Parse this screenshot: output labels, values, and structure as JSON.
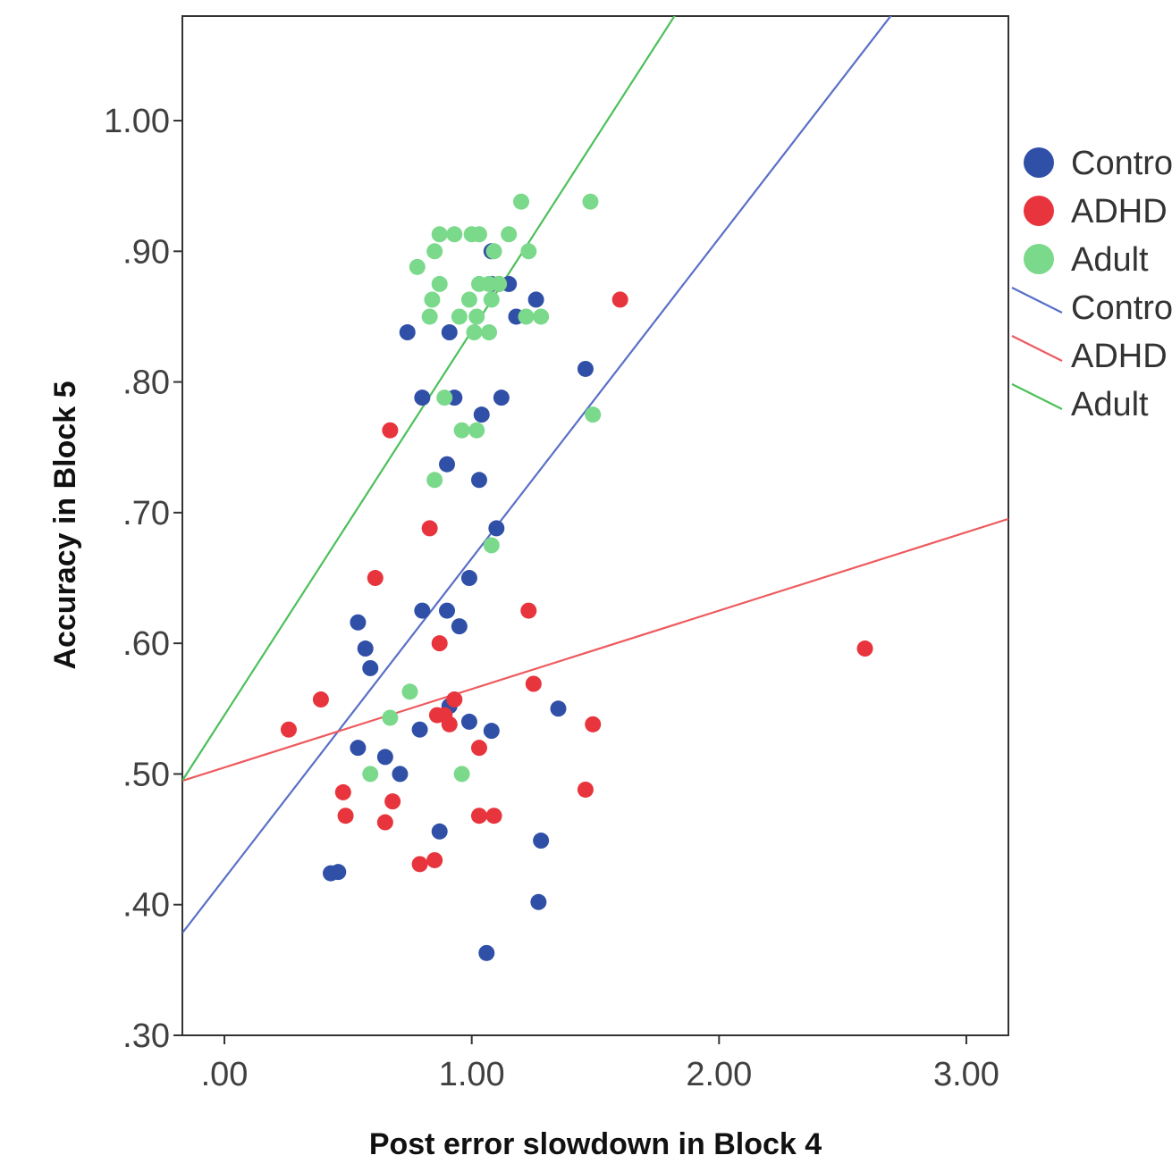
{
  "chart_data": {
    "type": "scatter",
    "xlabel": "Post error slowdown in Block 4",
    "ylabel": "Accuracy in Block 5",
    "xlim": [
      -0.17,
      3.17
    ],
    "ylim": [
      0.3,
      1.08
    ],
    "x_ticks": [
      0,
      1,
      2,
      3
    ],
    "x_tick_labels": [
      ".00",
      "1.00",
      "2.00",
      "3.00"
    ],
    "y_ticks": [
      0.3,
      0.4,
      0.5,
      0.6,
      0.7,
      0.8,
      0.9,
      1.0
    ],
    "y_tick_labels": [
      ".30",
      ".40",
      ".50",
      ".60",
      ".70",
      ".80",
      ".90",
      "1.00"
    ],
    "grid": false,
    "legend_position": "right",
    "series": [
      {
        "name": "Control",
        "color": "#3050a8",
        "points": [
          [
            0.43,
            0.424
          ],
          [
            0.46,
            0.425
          ],
          [
            0.54,
            0.52
          ],
          [
            0.54,
            0.616
          ],
          [
            0.57,
            0.596
          ],
          [
            0.59,
            0.581
          ],
          [
            0.65,
            0.513
          ],
          [
            0.71,
            0.5
          ],
          [
            0.74,
            0.838
          ],
          [
            0.79,
            0.534
          ],
          [
            0.8,
            0.788
          ],
          [
            0.8,
            0.625
          ],
          [
            0.87,
            0.456
          ],
          [
            0.9,
            0.625
          ],
          [
            0.9,
            0.737
          ],
          [
            0.91,
            0.838
          ],
          [
            0.91,
            0.552
          ],
          [
            0.93,
            0.788
          ],
          [
            0.95,
            0.613
          ],
          [
            0.99,
            0.54
          ],
          [
            0.99,
            0.65
          ],
          [
            1.03,
            0.725
          ],
          [
            1.04,
            0.775
          ],
          [
            1.06,
            0.363
          ],
          [
            1.08,
            0.533
          ],
          [
            1.08,
            0.9
          ],
          [
            1.08,
            0.875
          ],
          [
            1.1,
            0.688
          ],
          [
            1.12,
            0.788
          ],
          [
            1.15,
            0.875
          ],
          [
            1.18,
            0.85
          ],
          [
            1.26,
            0.863
          ],
          [
            1.27,
            0.402
          ],
          [
            1.28,
            0.449
          ],
          [
            1.35,
            0.55
          ],
          [
            1.46,
            0.81
          ]
        ]
      },
      {
        "name": "ADHD",
        "color": "#e8343c",
        "points": [
          [
            0.26,
            0.534
          ],
          [
            0.39,
            0.557
          ],
          [
            0.48,
            0.486
          ],
          [
            0.49,
            0.468
          ],
          [
            0.61,
            0.65
          ],
          [
            0.65,
            0.463
          ],
          [
            0.67,
            0.763
          ],
          [
            0.68,
            0.479
          ],
          [
            0.79,
            0.431
          ],
          [
            0.83,
            0.688
          ],
          [
            0.85,
            0.434
          ],
          [
            0.86,
            0.545
          ],
          [
            0.87,
            0.6
          ],
          [
            0.89,
            0.545
          ],
          [
            0.91,
            0.538
          ],
          [
            0.93,
            0.557
          ],
          [
            1.03,
            0.52
          ],
          [
            1.03,
            0.468
          ],
          [
            1.09,
            0.468
          ],
          [
            1.11,
            0.875
          ],
          [
            1.23,
            0.625
          ],
          [
            1.25,
            0.569
          ],
          [
            1.46,
            0.488
          ],
          [
            1.49,
            0.538
          ],
          [
            1.6,
            0.863
          ],
          [
            2.59,
            0.596
          ]
        ]
      },
      {
        "name": "Adult",
        "color": "#7bd98b",
        "points": [
          [
            0.59,
            0.5
          ],
          [
            0.67,
            0.543
          ],
          [
            0.75,
            0.563
          ],
          [
            0.78,
            0.888
          ],
          [
            0.83,
            0.85
          ],
          [
            0.84,
            0.863
          ],
          [
            0.85,
            0.9
          ],
          [
            0.85,
            0.725
          ],
          [
            0.87,
            0.875
          ],
          [
            0.87,
            0.913
          ],
          [
            0.89,
            0.788
          ],
          [
            0.93,
            0.913
          ],
          [
            0.95,
            0.85
          ],
          [
            0.96,
            0.763
          ],
          [
            0.96,
            0.5
          ],
          [
            0.99,
            0.863
          ],
          [
            1.0,
            0.913
          ],
          [
            1.01,
            0.838
          ],
          [
            1.02,
            0.85
          ],
          [
            1.02,
            0.763
          ],
          [
            1.03,
            0.913
          ],
          [
            1.03,
            0.875
          ],
          [
            1.07,
            0.838
          ],
          [
            1.07,
            0.875
          ],
          [
            1.08,
            0.863
          ],
          [
            1.08,
            0.675
          ],
          [
            1.09,
            0.9
          ],
          [
            1.11,
            0.875
          ],
          [
            1.15,
            0.913
          ],
          [
            1.2,
            0.938
          ],
          [
            1.22,
            0.85
          ],
          [
            1.23,
            0.9
          ],
          [
            1.28,
            0.85
          ],
          [
            1.48,
            0.938
          ],
          [
            1.49,
            0.775
          ]
        ]
      }
    ],
    "fit_lines": [
      {
        "name": "Control",
        "color": "#5a6fc6",
        "intercept": 0.42,
        "slope": 0.245
      },
      {
        "name": "ADHD",
        "color": "#ee5a5e",
        "intercept": 0.505,
        "slope": 0.06
      },
      {
        "name": "Adult",
        "color": "#4cc05a",
        "intercept": 0.545,
        "slope": 0.294
      }
    ],
    "legend": [
      {
        "kind": "marker",
        "label": "Control",
        "color": "#3050a8"
      },
      {
        "kind": "marker",
        "label": "ADHD",
        "color": "#e8343c"
      },
      {
        "kind": "marker",
        "label": "Adult",
        "color": "#7bd98b"
      },
      {
        "kind": "line",
        "label": "Control",
        "color": "#5a6fc6"
      },
      {
        "kind": "line",
        "label": "ADHD",
        "color": "#ee5a5e"
      },
      {
        "kind": "line",
        "label": "Adult",
        "color": "#4cc05a"
      }
    ]
  }
}
